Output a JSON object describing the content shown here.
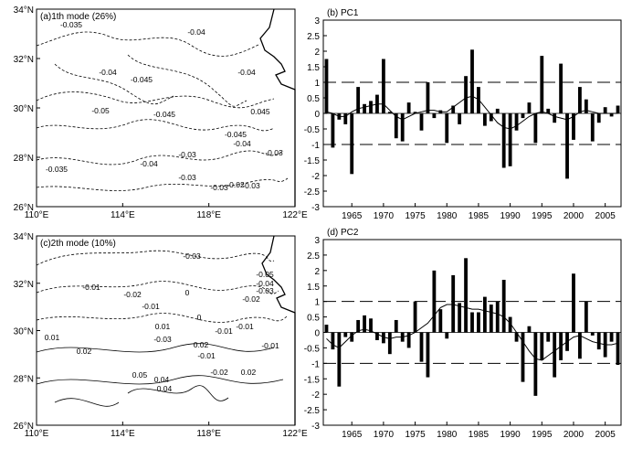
{
  "chart_data": [
    {
      "id": "a",
      "type": "contour_map",
      "title": "(a)1th mode (26%)",
      "x_ticks": [
        "110°E",
        "114°E",
        "118°E",
        "122°E"
      ],
      "y_ticks": [
        "26°N",
        "28°N",
        "30°N",
        "32°N",
        "34°N"
      ],
      "contour_labels": [
        "-0.035",
        "-0.04",
        "-0.04",
        "-0.045",
        "-0.04",
        "-0.05",
        "-0.045",
        "0.045",
        "-0.045",
        "-0.04",
        "-0.03",
        "-0.035",
        "-0.04",
        "-0.03",
        "-0.03",
        "-0.03",
        "-0.02",
        "-0.03"
      ]
    },
    {
      "id": "b",
      "type": "bar",
      "title": "(b) PC1",
      "xlim": [
        1961,
        2007
      ],
      "x_ticks": [
        "1965",
        "1970",
        "1975",
        "1980",
        "1985",
        "1990",
        "1995",
        "2000",
        "2005"
      ],
      "ylim": [
        -3,
        3
      ],
      "y_ticks": [
        "3",
        "2.5",
        "2",
        "1.5",
        "1",
        "0.5",
        "0",
        "-0.5",
        "-1",
        "-1.5",
        "-2",
        "-2.5",
        "-3"
      ],
      "reference_lines": [
        1,
        -1
      ],
      "x": [
        1961,
        1962,
        1963,
        1964,
        1965,
        1966,
        1967,
        1968,
        1969,
        1970,
        1971,
        1972,
        1973,
        1974,
        1975,
        1976,
        1977,
        1978,
        1979,
        1980,
        1981,
        1982,
        1983,
        1984,
        1985,
        1986,
        1987,
        1988,
        1989,
        1990,
        1991,
        1992,
        1993,
        1994,
        1995,
        1996,
        1997,
        1998,
        1999,
        2000,
        2001,
        2002,
        2003,
        2004,
        2005,
        2006,
        2007
      ],
      "values": [
        1.75,
        -1.1,
        -0.2,
        -0.35,
        -1.95,
        0.85,
        0.3,
        0.4,
        0.6,
        1.75,
        0.05,
        -0.8,
        -0.9,
        0.35,
        0.05,
        -0.55,
        1.0,
        -0.15,
        0.1,
        -0.95,
        0.25,
        -0.35,
        1.2,
        2.05,
        0.85,
        -0.4,
        -0.25,
        0.15,
        -1.75,
        -1.7,
        -0.55,
        -0.15,
        0.35,
        -0.95,
        1.85,
        0.15,
        -0.3,
        1.6,
        -2.1,
        -0.85,
        0.85,
        0.45,
        -0.9,
        -0.3,
        0.2,
        -0.1,
        0.25
      ],
      "smoothed": [
        0.05,
        0.0,
        -0.1,
        -0.1,
        0.05,
        0.15,
        0.2,
        0.25,
        0.3,
        0.3,
        0.1,
        -0.1,
        -0.2,
        -0.1,
        0.0,
        0.05,
        0.1,
        0.1,
        0.05,
        0.05,
        0.2,
        0.35,
        0.5,
        0.55,
        0.45,
        0.2,
        -0.05,
        -0.3,
        -0.45,
        -0.5,
        -0.4,
        -0.25,
        -0.1,
        0.0,
        0.05,
        0.0,
        -0.1,
        -0.15,
        -0.2,
        -0.1,
        0.05,
        0.1,
        0.05,
        0.0,
        0.0,
        0.0,
        0.0
      ]
    },
    {
      "id": "c",
      "type": "contour_map",
      "title": "(c)2th mode (10%)",
      "x_ticks": [
        "110°E",
        "114°E",
        "118°E",
        "122°E"
      ],
      "y_ticks": [
        "26°N",
        "28°N",
        "30°N",
        "32°N",
        "34°N"
      ],
      "contour_labels": [
        "-0.03",
        "-0.01",
        "-0.02",
        "-0.01",
        "0",
        "-0.05",
        "-0.04",
        "-0.03",
        "-0.02",
        "-0.01",
        "0",
        "0.01",
        "-0.01",
        "0.02",
        "-0.01",
        "0.01",
        "-0.03",
        "0.02",
        "-0.01",
        "0.05",
        "0.04",
        "0.04",
        "-0.02",
        "0.02"
      ]
    },
    {
      "id": "d",
      "type": "bar",
      "title": "(d) PC2",
      "xlim": [
        1961,
        2007
      ],
      "x_ticks": [
        "1965",
        "1970",
        "1975",
        "1980",
        "1985",
        "1990",
        "1995",
        "2000",
        "2005"
      ],
      "ylim": [
        -3,
        3
      ],
      "y_ticks": [
        "3",
        "2.5",
        "2",
        "1.5",
        "1",
        "0.5",
        "0",
        "-0.5",
        "-1",
        "-1.5",
        "-2",
        "-2.5",
        "-3"
      ],
      "reference_lines": [
        1,
        -1
      ],
      "x": [
        1961,
        1962,
        1963,
        1964,
        1965,
        1966,
        1967,
        1968,
        1969,
        1970,
        1971,
        1972,
        1973,
        1974,
        1975,
        1976,
        1977,
        1978,
        1979,
        1980,
        1981,
        1982,
        1983,
        1984,
        1985,
        1986,
        1987,
        1988,
        1989,
        1990,
        1991,
        1992,
        1993,
        1994,
        1995,
        1996,
        1997,
        1998,
        1999,
        2000,
        2001,
        2002,
        2003,
        2004,
        2005,
        2006,
        2007
      ],
      "values": [
        0.25,
        -0.55,
        -1.75,
        -0.15,
        -0.3,
        0.4,
        0.55,
        0.45,
        -0.25,
        -0.35,
        -0.7,
        0.4,
        -0.3,
        -0.5,
        1.0,
        -0.95,
        -1.45,
        2.0,
        0.75,
        -0.2,
        1.85,
        0.95,
        2.4,
        0.65,
        0.65,
        1.15,
        0.9,
        1.0,
        1.7,
        0.5,
        -0.3,
        -1.6,
        0.2,
        -2.05,
        -0.9,
        -0.3,
        -1.45,
        -0.9,
        -0.6,
        1.9,
        -0.85,
        1.0,
        -0.1,
        -0.55,
        -0.8,
        -0.3,
        -1.05
      ],
      "smoothed": [
        -0.2,
        -0.4,
        -0.5,
        -0.3,
        -0.1,
        0.05,
        0.1,
        0.05,
        -0.05,
        -0.15,
        -0.2,
        -0.15,
        -0.15,
        -0.1,
        0.0,
        0.15,
        0.3,
        0.55,
        0.8,
        0.9,
        0.9,
        0.85,
        0.8,
        0.75,
        0.75,
        0.7,
        0.65,
        0.6,
        0.5,
        0.3,
        0.0,
        -0.3,
        -0.6,
        -0.85,
        -0.9,
        -0.75,
        -0.6,
        -0.45,
        -0.3,
        -0.15,
        -0.1,
        -0.2,
        -0.3,
        -0.35,
        -0.4,
        -0.4,
        -0.35
      ]
    }
  ]
}
